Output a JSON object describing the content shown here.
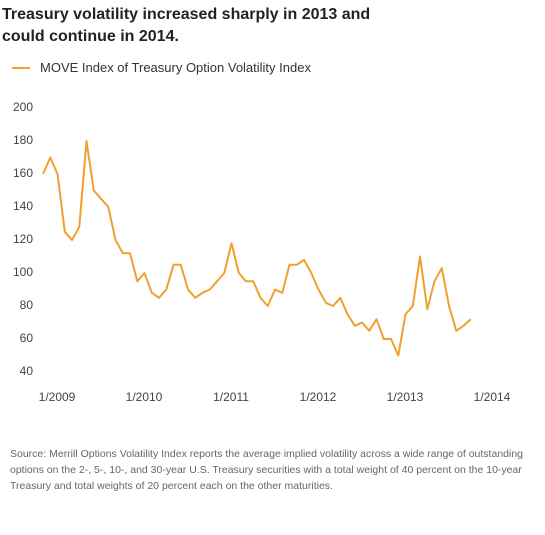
{
  "chart_data": {
    "type": "line",
    "title": "Treasury volatility increased sharply in 2013 and could continue in 2014.",
    "source": "Source: Merrill Options Volatility Index reports the average implied volatility across a wide range of outstanding options on the 2-, 5-, 10-, and 30-year U.S. Treasury securities  with a total weight of 40 percent on the 10-year Treasury and total weights of 20 percent each on the other maturities.",
    "x": [
      "2009-01",
      "2009-02",
      "2009-03",
      "2009-04",
      "2009-05",
      "2009-06",
      "2009-07",
      "2009-08",
      "2009-09",
      "2009-10",
      "2009-11",
      "2009-12",
      "2010-01",
      "2010-02",
      "2010-03",
      "2010-04",
      "2010-05",
      "2010-06",
      "2010-07",
      "2010-08",
      "2010-09",
      "2010-10",
      "2010-11",
      "2010-12",
      "2011-01",
      "2011-02",
      "2011-03",
      "2011-04",
      "2011-05",
      "2011-06",
      "2011-07",
      "2011-08",
      "2011-09",
      "2011-10",
      "2011-11",
      "2011-12",
      "2012-01",
      "2012-02",
      "2012-03",
      "2012-04",
      "2012-05",
      "2012-06",
      "2012-07",
      "2012-08",
      "2012-09",
      "2012-10",
      "2012-11",
      "2012-12",
      "2013-01",
      "2013-02",
      "2013-03",
      "2013-04",
      "2013-05",
      "2013-06",
      "2013-07",
      "2013-08",
      "2013-09",
      "2013-10",
      "2013-11",
      "2013-12"
    ],
    "series": [
      {
        "name": "MOVE Index of Treasury Option Volatility Index",
        "color": "#f0a030",
        "values": [
          160,
          170,
          160,
          125,
          120,
          128,
          180,
          150,
          145,
          140,
          120,
          112,
          112,
          95,
          100,
          88,
          85,
          90,
          105,
          105,
          90,
          85,
          88,
          90,
          95,
          100,
          118,
          100,
          95,
          95,
          85,
          80,
          90,
          88,
          105,
          105,
          108,
          100,
          90,
          82,
          80,
          85,
          75,
          68,
          70,
          65,
          72,
          60,
          60,
          50,
          75,
          80,
          110,
          78,
          95,
          103,
          80,
          65,
          68,
          72
        ]
      }
    ],
    "xlim": [
      "2009-01",
      "2014-01"
    ],
    "xticks": [
      {
        "value": "2009-01",
        "label": "1/2009"
      },
      {
        "value": "2010-01",
        "label": "1/2010"
      },
      {
        "value": "2011-01",
        "label": "1/2011"
      },
      {
        "value": "2012-01",
        "label": "1/2012"
      },
      {
        "value": "2013-01",
        "label": "1/2013"
      },
      {
        "value": "2014-01",
        "label": "1/2014"
      }
    ],
    "ylim": [
      40,
      200
    ],
    "yticks": [
      40,
      60,
      80,
      100,
      120,
      140,
      160,
      180,
      200
    ],
    "grid": false
  }
}
